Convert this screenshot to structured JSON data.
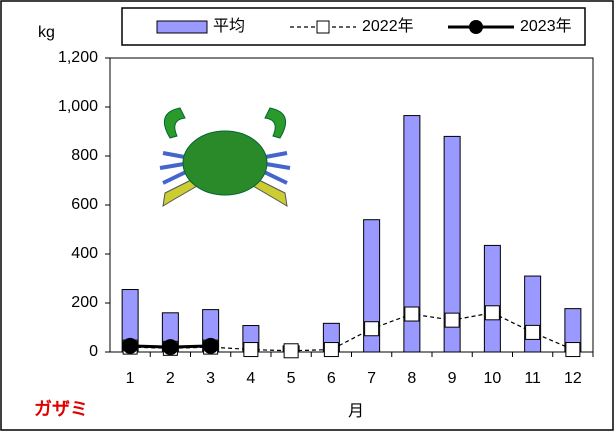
{
  "chart_data": {
    "type": "bar",
    "y_label": "kg",
    "x_label": "月",
    "annotation": "ガザミ",
    "categories": [
      "1",
      "2",
      "3",
      "4",
      "5",
      "6",
      "7",
      "8",
      "9",
      "10",
      "11",
      "12"
    ],
    "series": [
      {
        "name": "平均",
        "type": "bar",
        "color": "#9999ff",
        "values": [
          255,
          160,
          173,
          108,
          25,
          117,
          540,
          965,
          880,
          435,
          310,
          177
        ]
      },
      {
        "name": "2022年",
        "type": "line",
        "marker": "square",
        "dashed": true,
        "color": "#000000",
        "values": [
          20,
          15,
          20,
          10,
          5,
          10,
          95,
          155,
          130,
          160,
          80,
          10
        ]
      },
      {
        "name": "2023年",
        "type": "line",
        "marker": "circle",
        "dashed": false,
        "color": "#000000",
        "values": [
          25,
          20,
          25,
          null,
          null,
          null,
          null,
          null,
          null,
          null,
          null,
          null
        ]
      }
    ],
    "ylim": [
      0,
      1200
    ],
    "yticks": [
      0,
      200,
      400,
      600,
      800,
      {
        "value": 1000,
        "label": "1,000"
      },
      {
        "value": 1200,
        "label": "1,200"
      }
    ]
  }
}
